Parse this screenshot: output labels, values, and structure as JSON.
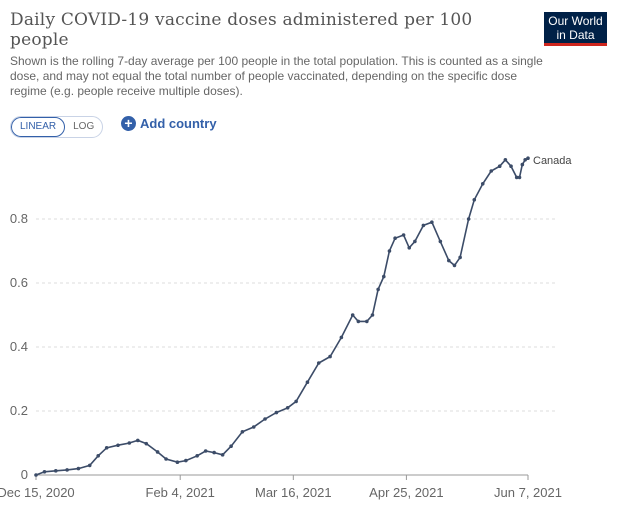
{
  "header": {
    "title": "Daily COVID-19 vaccine doses administered per 100 people",
    "subtitle": "Shown is the rolling 7-day average per 100 people in the total population. This is counted as a single dose, and may not equal the total number of people vaccinated, depending on the specific dose regime (e.g. people receive multiple doses).",
    "logo_line1": "Our World",
    "logo_line2": "in Data"
  },
  "controls": {
    "linear_label": "LINEAR",
    "log_label": "LOG",
    "add_country_label": "Add country"
  },
  "colors": {
    "series": "#3c4c68",
    "grid": "#dddddd",
    "accent": "#3360a9",
    "logo_bg": "#002147",
    "logo_bar": "#ce261e"
  },
  "chart_data": {
    "type": "line",
    "title": "Daily COVID-19 vaccine doses administered per 100 people",
    "ylim": [
      0,
      1.0
    ],
    "yticks": [
      "0",
      "0.2",
      "0.4",
      "0.6",
      "0.8"
    ],
    "ytick_values": [
      0,
      0.2,
      0.4,
      0.6,
      0.8
    ],
    "xticks": [
      "Dec 15, 2020",
      "Feb 4, 2021",
      "Mar 16, 2021",
      "Apr 25, 2021",
      "Jun 7, 2021"
    ],
    "xtick_values": [
      "2020-12-15",
      "2021-02-04",
      "2021-03-16",
      "2021-04-25",
      "2021-06-07"
    ],
    "xlim": [
      "2020-12-15",
      "2021-06-07"
    ],
    "grid": true,
    "series": [
      {
        "name": "Canada",
        "points": [
          [
            "2020-12-15",
            0.0
          ],
          [
            "2020-12-18",
            0.01
          ],
          [
            "2020-12-22",
            0.013
          ],
          [
            "2020-12-26",
            0.016
          ],
          [
            "2020-12-30",
            0.02
          ],
          [
            "2021-01-03",
            0.03
          ],
          [
            "2021-01-06",
            0.06
          ],
          [
            "2021-01-09",
            0.085
          ],
          [
            "2021-01-13",
            0.093
          ],
          [
            "2021-01-17",
            0.1
          ],
          [
            "2021-01-20",
            0.108
          ],
          [
            "2021-01-23",
            0.098
          ],
          [
            "2021-01-27",
            0.072
          ],
          [
            "2021-01-30",
            0.05
          ],
          [
            "2021-02-03",
            0.04
          ],
          [
            "2021-02-06",
            0.045
          ],
          [
            "2021-02-10",
            0.06
          ],
          [
            "2021-02-13",
            0.075
          ],
          [
            "2021-02-16",
            0.07
          ],
          [
            "2021-02-19",
            0.063
          ],
          [
            "2021-02-22",
            0.09
          ],
          [
            "2021-02-26",
            0.135
          ],
          [
            "2021-03-02",
            0.15
          ],
          [
            "2021-03-06",
            0.175
          ],
          [
            "2021-03-10",
            0.195
          ],
          [
            "2021-03-14",
            0.21
          ],
          [
            "2021-03-17",
            0.23
          ],
          [
            "2021-03-21",
            0.29
          ],
          [
            "2021-03-25",
            0.35
          ],
          [
            "2021-03-29",
            0.37
          ],
          [
            "2021-04-02",
            0.43
          ],
          [
            "2021-04-06",
            0.5
          ],
          [
            "2021-04-08",
            0.48
          ],
          [
            "2021-04-11",
            0.48
          ],
          [
            "2021-04-13",
            0.5
          ],
          [
            "2021-04-15",
            0.58
          ],
          [
            "2021-04-17",
            0.62
          ],
          [
            "2021-04-19",
            0.7
          ],
          [
            "2021-04-21",
            0.74
          ],
          [
            "2021-04-24",
            0.75
          ],
          [
            "2021-04-26",
            0.71
          ],
          [
            "2021-04-28",
            0.73
          ],
          [
            "2021-05-01",
            0.78
          ],
          [
            "2021-05-04",
            0.79
          ],
          [
            "2021-05-07",
            0.73
          ],
          [
            "2021-05-10",
            0.67
          ],
          [
            "2021-05-12",
            0.655
          ],
          [
            "2021-05-14",
            0.68
          ],
          [
            "2021-05-17",
            0.8
          ],
          [
            "2021-05-19",
            0.86
          ],
          [
            "2021-05-22",
            0.91
          ],
          [
            "2021-05-25",
            0.95
          ],
          [
            "2021-05-28",
            0.965
          ],
          [
            "2021-05-30",
            0.985
          ],
          [
            "2021-06-01",
            0.965
          ],
          [
            "2021-06-03",
            0.93
          ],
          [
            "2021-06-04",
            0.93
          ],
          [
            "2021-06-05",
            0.97
          ],
          [
            "2021-06-06",
            0.985
          ],
          [
            "2021-06-07",
            0.99
          ]
        ]
      }
    ]
  }
}
